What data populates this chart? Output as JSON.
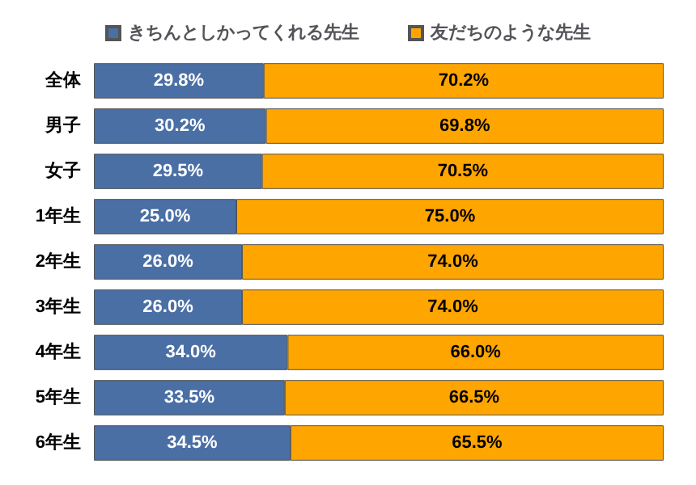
{
  "chart_data": {
    "type": "bar",
    "orientation": "horizontal",
    "stacked": true,
    "legend": "top",
    "categories": [
      "全体",
      "男子",
      "女子",
      "1年生",
      "2年生",
      "3年生",
      "4年生",
      "5年生",
      "6年生"
    ],
    "series": [
      {
        "name": "きちんとしかってくれる先生",
        "color": "#4a6fa5",
        "values": [
          29.8,
          30.2,
          29.5,
          25.0,
          26.0,
          26.0,
          34.0,
          33.5,
          34.5
        ],
        "value_labels": [
          "29.8%",
          "30.2%",
          "29.5%",
          "25.0%",
          "26.0%",
          "26.0%",
          "34.0%",
          "33.5%",
          "34.5%"
        ]
      },
      {
        "name": "友だちのような先生",
        "color": "#ffa500",
        "values": [
          70.2,
          69.8,
          70.5,
          75.0,
          74.0,
          74.0,
          66.0,
          66.5,
          65.5
        ],
        "value_labels": [
          "70.2%",
          "69.8%",
          "70.5%",
          "75.0%",
          "74.0%",
          "74.0%",
          "66.0%",
          "66.5%",
          "65.5%"
        ]
      }
    ]
  }
}
